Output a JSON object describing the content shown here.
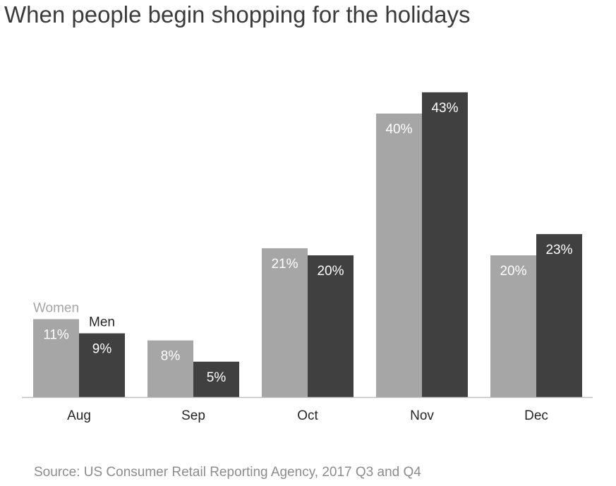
{
  "title": "When people begin shopping for the holidays",
  "source": "Source: US Consumer Retail Reporting Agency, 2017 Q3 and Q4",
  "colors": {
    "women": "#a6a6a6",
    "men": "#404040",
    "axis": "#bfbfbf",
    "label_inside": "#ffffff",
    "category": "#262626",
    "legend_women": "#a6a6a6",
    "legend_men": "#262626"
  },
  "chart_data": {
    "type": "bar",
    "title": "When people begin shopping for the holidays",
    "xlabel": "",
    "ylabel": "",
    "categories": [
      "Aug",
      "Sep",
      "Oct",
      "Nov",
      "Dec"
    ],
    "series": [
      {
        "name": "Women",
        "values": [
          11,
          8,
          21,
          40,
          20
        ],
        "labels": [
          "11%",
          "8%",
          "21%",
          "40%",
          "20%"
        ]
      },
      {
        "name": "Men",
        "values": [
          9,
          5,
          20,
          43,
          23
        ],
        "labels": [
          "9%",
          "5%",
          "20%",
          "43%",
          "23%"
        ]
      }
    ],
    "ylim": [
      0,
      43
    ],
    "grid": false,
    "legend": "series names shown above the first pair of bars"
  }
}
